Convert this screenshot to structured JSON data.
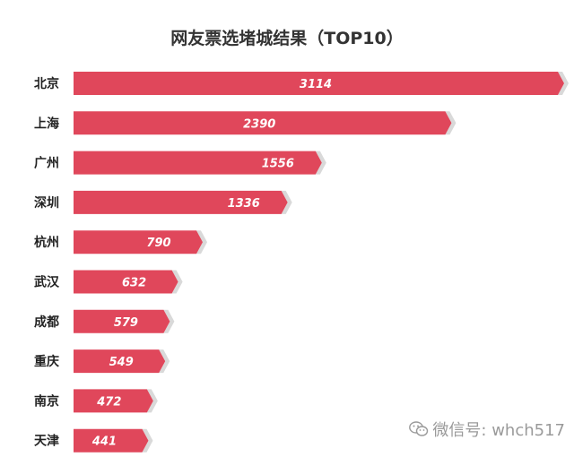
{
  "chart_data": {
    "type": "bar",
    "orientation": "horizontal",
    "title": "网友票选堵城结果（TOP10）",
    "categories": [
      "北京",
      "上海",
      "广州",
      "深圳",
      "杭州",
      "武汉",
      "成都",
      "重庆",
      "南京",
      "天津"
    ],
    "values": [
      3114,
      2390,
      1556,
      1336,
      790,
      632,
      579,
      549,
      472,
      441
    ],
    "xlim": [
      0,
      3114
    ],
    "grid": false,
    "legend": "none",
    "bar_color": "#e0475b"
  },
  "watermark": {
    "text": "微信号: whch517",
    "icon": "wechat-logo-icon"
  }
}
